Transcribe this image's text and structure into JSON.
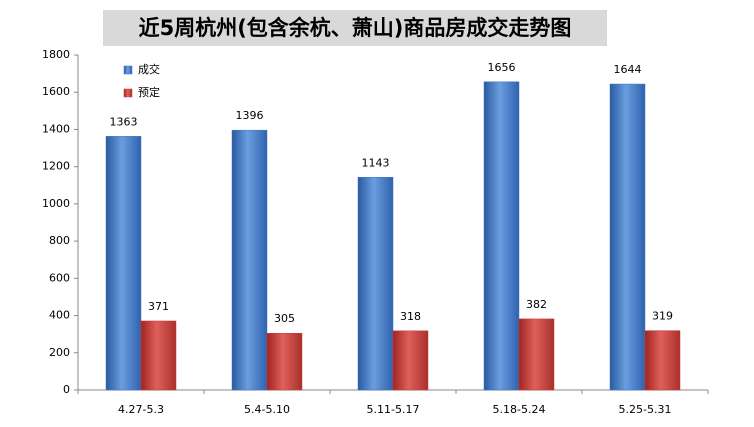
{
  "chart_data": {
    "type": "bar",
    "title": "近5周杭州(包含余杭、萧山)商品房成交走势图",
    "categories": [
      "4.27-5.3",
      "5.4-5.10",
      "5.11-5.17",
      "5.18-5.24",
      "5.25-5.31"
    ],
    "series": [
      {
        "name": "成交",
        "color": "#3d74c4",
        "values": [
          1363,
          1396,
          1143,
          1656,
          1644
        ]
      },
      {
        "name": "预定",
        "color": "#c83a36",
        "values": [
          371,
          305,
          318,
          382,
          319
        ]
      }
    ],
    "ylim": [
      0,
      1800
    ],
    "yticks": [
      0,
      200,
      400,
      600,
      800,
      1000,
      1200,
      1400,
      1600,
      1800
    ],
    "grid": false,
    "legend": "top-left"
  }
}
